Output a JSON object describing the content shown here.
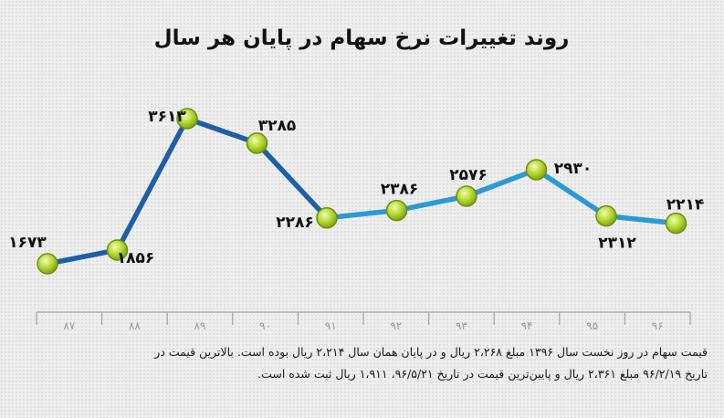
{
  "chart_data": {
    "type": "line",
    "title": "روند تغییرات نرخ سهام در پایان هر سال",
    "categories": [
      "۸۷",
      "۸۸",
      "۸۹",
      "۹۰",
      "۹۱",
      "۹۲",
      "۹۳",
      "۹۴",
      "۹۵",
      "۹۶"
    ],
    "series": [
      {
        "values": [
          1673,
          1856,
          3613,
          3285,
          2286,
          2386,
          2576,
          2930,
          2312,
          2214
        ],
        "labels": [
          "۱۶۷۳",
          "۱۸۵۶",
          "۳۶۱۳",
          "۳۲۸۵",
          "۲۲۸۶",
          "۲۳۸۶",
          "۲۵۷۶",
          "۲۹۳۰",
          "۲۳۱۲",
          "۲۲۱۴"
        ]
      }
    ],
    "grid": false,
    "legend": "none",
    "colors": {
      "line_main": "#1d5ea9",
      "line_light": "#2a9ad6",
      "marker_fill": "#b6d930",
      "marker_edge": "#6e8f12"
    }
  },
  "note": {
    "line1": "قیمت سهام در روز نخست سال ۱۳۹۶ مبلغ ۲،۲۶۸ ریال و در پایان همان سال ۲،۲۱۴ ریال بوده است. بالاترین قیمت در",
    "line2": "تاریخ ۹۶/۲/۱۹ مبلغ ۲،۳۶۱ ریال و پایین‌ترین قیمت در تاریخ ۹۶/۵/۲۱، ۱،۹۱۱ ریال ثبت شده است."
  }
}
